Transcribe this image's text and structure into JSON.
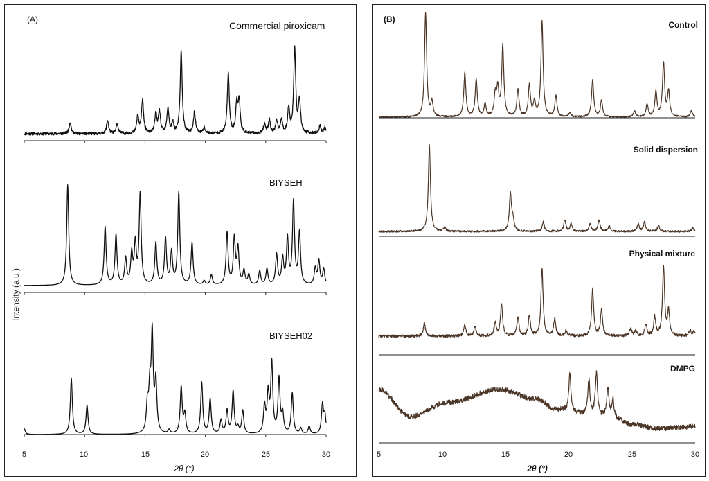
{
  "chart_data": [
    {
      "type": "line",
      "panel_label": "(A)",
      "xlabel": "2θ (°)",
      "ylabel": "Intensity (a.u.)",
      "xlim": [
        5,
        30
      ],
      "xticks": [
        5,
        10,
        15,
        20,
        25,
        30
      ],
      "line_color": "#111111",
      "series": [
        {
          "name": "Commercial piroxicam",
          "peaks": [
            [
              8.8,
              0.12
            ],
            [
              11.9,
              0.14
            ],
            [
              12.7,
              0.1
            ],
            [
              14.4,
              0.18
            ],
            [
              14.8,
              0.35
            ],
            [
              15.9,
              0.2
            ],
            [
              16.2,
              0.22
            ],
            [
              16.9,
              0.26
            ],
            [
              17.3,
              0.1
            ],
            [
              18.0,
              0.85
            ],
            [
              19.1,
              0.22
            ],
            [
              19.9,
              0.06
            ],
            [
              21.9,
              0.62
            ],
            [
              22.6,
              0.3
            ],
            [
              22.8,
              0.32
            ],
            [
              24.9,
              0.1
            ],
            [
              25.3,
              0.14
            ],
            [
              25.9,
              0.12
            ],
            [
              26.3,
              0.14
            ],
            [
              26.9,
              0.26
            ],
            [
              27.4,
              0.88
            ],
            [
              27.8,
              0.34
            ],
            [
              29.5,
              0.08
            ],
            [
              29.9,
              0.06
            ]
          ],
          "noise": 0.03
        },
        {
          "name": "BIYSEH",
          "peaks": [
            [
              8.6,
              1.0
            ],
            [
              11.7,
              0.58
            ],
            [
              12.6,
              0.5
            ],
            [
              13.4,
              0.26
            ],
            [
              13.9,
              0.3
            ],
            [
              14.2,
              0.4
            ],
            [
              14.6,
              0.9
            ],
            [
              15.9,
              0.42
            ],
            [
              16.7,
              0.46
            ],
            [
              17.2,
              0.32
            ],
            [
              17.8,
              0.92
            ],
            [
              18.9,
              0.42
            ],
            [
              19.9,
              0.04
            ],
            [
              20.5,
              0.1
            ],
            [
              21.8,
              0.52
            ],
            [
              22.4,
              0.46
            ],
            [
              22.7,
              0.36
            ],
            [
              23.2,
              0.14
            ],
            [
              23.6,
              0.1
            ],
            [
              24.5,
              0.14
            ],
            [
              25.1,
              0.16
            ],
            [
              25.9,
              0.3
            ],
            [
              26.4,
              0.26
            ],
            [
              26.8,
              0.46
            ],
            [
              27.3,
              0.82
            ],
            [
              27.8,
              0.52
            ],
            [
              29.1,
              0.16
            ],
            [
              29.4,
              0.24
            ],
            [
              29.8,
              0.16
            ]
          ],
          "noise": 0.0
        },
        {
          "name": "BIYSEH02",
          "peaks": [
            [
              5.0,
              0.06
            ],
            [
              8.9,
              0.58
            ],
            [
              10.2,
              0.3
            ],
            [
              15.2,
              0.28
            ],
            [
              15.4,
              0.4
            ],
            [
              15.6,
              1.0
            ],
            [
              15.9,
              0.52
            ],
            [
              17.0,
              0.04
            ],
            [
              18.0,
              0.48
            ],
            [
              18.3,
              0.2
            ],
            [
              19.7,
              0.53
            ],
            [
              20.4,
              0.36
            ],
            [
              21.3,
              0.14
            ],
            [
              21.8,
              0.24
            ],
            [
              22.3,
              0.44
            ],
            [
              22.7,
              0.06
            ],
            [
              23.1,
              0.24
            ],
            [
              24.9,
              0.28
            ],
            [
              25.2,
              0.4
            ],
            [
              25.5,
              0.72
            ],
            [
              26.1,
              0.56
            ],
            [
              26.4,
              0.2
            ],
            [
              27.2,
              0.42
            ],
            [
              27.9,
              0.06
            ],
            [
              28.6,
              0.08
            ],
            [
              29.7,
              0.3
            ],
            [
              29.9,
              0.18
            ]
          ],
          "noise": 0.0
        }
      ]
    },
    {
      "type": "line",
      "panel_label": "(B)",
      "xlabel": "2θ (°)",
      "xlim": [
        5,
        30
      ],
      "xticks": [
        5,
        10,
        15,
        20,
        25,
        30
      ],
      "xtick_labels": [
        "5",
        "10",
        "15",
        "20",
        "25",
        "30"
      ],
      "line_color": "#4a3526",
      "series": [
        {
          "name": "Control",
          "peaks": [
            [
              8.7,
              1.0
            ],
            [
              9.2,
              0.14
            ],
            [
              11.8,
              0.42
            ],
            [
              12.7,
              0.36
            ],
            [
              13.4,
              0.12
            ],
            [
              14.2,
              0.2
            ],
            [
              14.4,
              0.26
            ],
            [
              14.8,
              0.68
            ],
            [
              16.0,
              0.26
            ],
            [
              16.9,
              0.3
            ],
            [
              17.3,
              0.14
            ],
            [
              17.9,
              0.92
            ],
            [
              19.0,
              0.2
            ],
            [
              20.1,
              0.04
            ],
            [
              21.9,
              0.36
            ],
            [
              22.6,
              0.16
            ],
            [
              25.2,
              0.06
            ],
            [
              26.2,
              0.12
            ],
            [
              26.9,
              0.24
            ],
            [
              27.5,
              0.52
            ],
            [
              27.9,
              0.24
            ],
            [
              29.7,
              0.06
            ]
          ],
          "noise": 0.015
        },
        {
          "name": "Solid dispersion",
          "peaks": [
            [
              9.0,
              0.92
            ],
            [
              10.2,
              0.04
            ],
            [
              15.4,
              0.4
            ],
            [
              15.6,
              0.12
            ],
            [
              18.0,
              0.1
            ],
            [
              19.7,
              0.12
            ],
            [
              20.2,
              0.08
            ],
            [
              21.7,
              0.08
            ],
            [
              22.4,
              0.12
            ],
            [
              23.2,
              0.06
            ],
            [
              25.5,
              0.08
            ],
            [
              26.0,
              0.1
            ],
            [
              27.1,
              0.06
            ],
            [
              29.8,
              0.04
            ]
          ],
          "noise": 0.02
        },
        {
          "name": "Physical mixture",
          "peaks": [
            [
              8.6,
              0.14
            ],
            [
              11.8,
              0.12
            ],
            [
              12.6,
              0.1
            ],
            [
              14.2,
              0.14
            ],
            [
              14.7,
              0.34
            ],
            [
              16.0,
              0.2
            ],
            [
              16.9,
              0.22
            ],
            [
              17.9,
              0.72
            ],
            [
              18.9,
              0.18
            ],
            [
              19.8,
              0.06
            ],
            [
              21.9,
              0.5
            ],
            [
              22.6,
              0.28
            ],
            [
              24.9,
              0.08
            ],
            [
              25.3,
              0.06
            ],
            [
              26.1,
              0.12
            ],
            [
              26.8,
              0.2
            ],
            [
              27.5,
              0.74
            ],
            [
              27.9,
              0.26
            ],
            [
              29.6,
              0.06
            ],
            [
              29.9,
              0.04
            ]
          ],
          "noise": 0.03
        },
        {
          "name": "DMPG",
          "peaks": [
            [
              20.1,
              0.38
            ],
            [
              21.6,
              0.34
            ],
            [
              22.2,
              0.42
            ],
            [
              23.1,
              0.3
            ],
            [
              23.5,
              0.18
            ]
          ],
          "halo": [
            [
              5.0,
              0.45
            ],
            [
              7.5,
              0.18
            ],
            [
              10.5,
              0.32
            ],
            [
              14.5,
              0.45
            ],
            [
              17.5,
              0.35
            ],
            [
              19.0,
              0.25
            ],
            [
              21.5,
              0.2
            ],
            [
              23.5,
              0.16
            ],
            [
              25.0,
              0.1
            ],
            [
              27.0,
              0.06
            ],
            [
              30.0,
              0.08
            ]
          ],
          "noise": 0.05
        }
      ]
    }
  ]
}
